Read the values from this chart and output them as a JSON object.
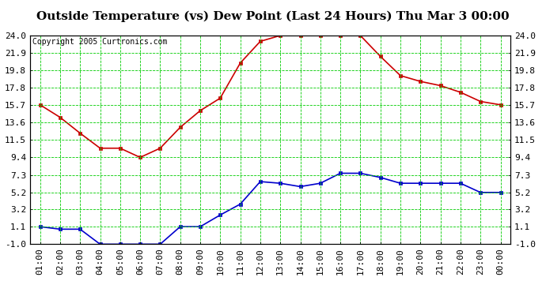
{
  "title": "Outside Temperature (vs) Dew Point (Last 24 Hours) Thu Mar 3 00:00",
  "copyright": "Copyright 2005 Curtronics.com",
  "x_labels": [
    "01:00",
    "02:00",
    "03:00",
    "04:00",
    "05:00",
    "06:00",
    "07:00",
    "08:00",
    "09:00",
    "10:00",
    "11:00",
    "12:00",
    "13:00",
    "14:00",
    "15:00",
    "16:00",
    "17:00",
    "18:00",
    "19:00",
    "20:00",
    "21:00",
    "22:00",
    "23:00",
    "00:00"
  ],
  "temp_values": [
    15.7,
    14.2,
    12.3,
    10.5,
    10.5,
    9.4,
    10.5,
    13.0,
    15.0,
    16.5,
    20.7,
    23.3,
    24.0,
    24.0,
    24.0,
    24.0,
    24.0,
    21.5,
    19.2,
    18.5,
    18.0,
    17.2,
    16.1,
    15.7
  ],
  "dew_values": [
    1.1,
    0.8,
    0.8,
    -1.0,
    -1.0,
    -1.0,
    -1.0,
    1.1,
    1.1,
    2.5,
    3.8,
    6.5,
    6.3,
    5.9,
    6.3,
    7.5,
    7.5,
    7.0,
    6.3,
    6.3,
    6.3,
    6.3,
    5.2,
    5.2
  ],
  "temp_color": "#cc0000",
  "dew_color": "#0000cc",
  "grid_color": "#00cc00",
  "bg_color": "#ffffff",
  "y_ticks": [
    -1.0,
    1.1,
    3.2,
    5.2,
    7.3,
    9.4,
    11.5,
    13.6,
    15.7,
    17.8,
    19.8,
    21.9,
    24.0
  ],
  "ylim": [
    -1.0,
    24.0
  ],
  "title_fontsize": 11,
  "axis_fontsize": 8,
  "copyright_fontsize": 7
}
